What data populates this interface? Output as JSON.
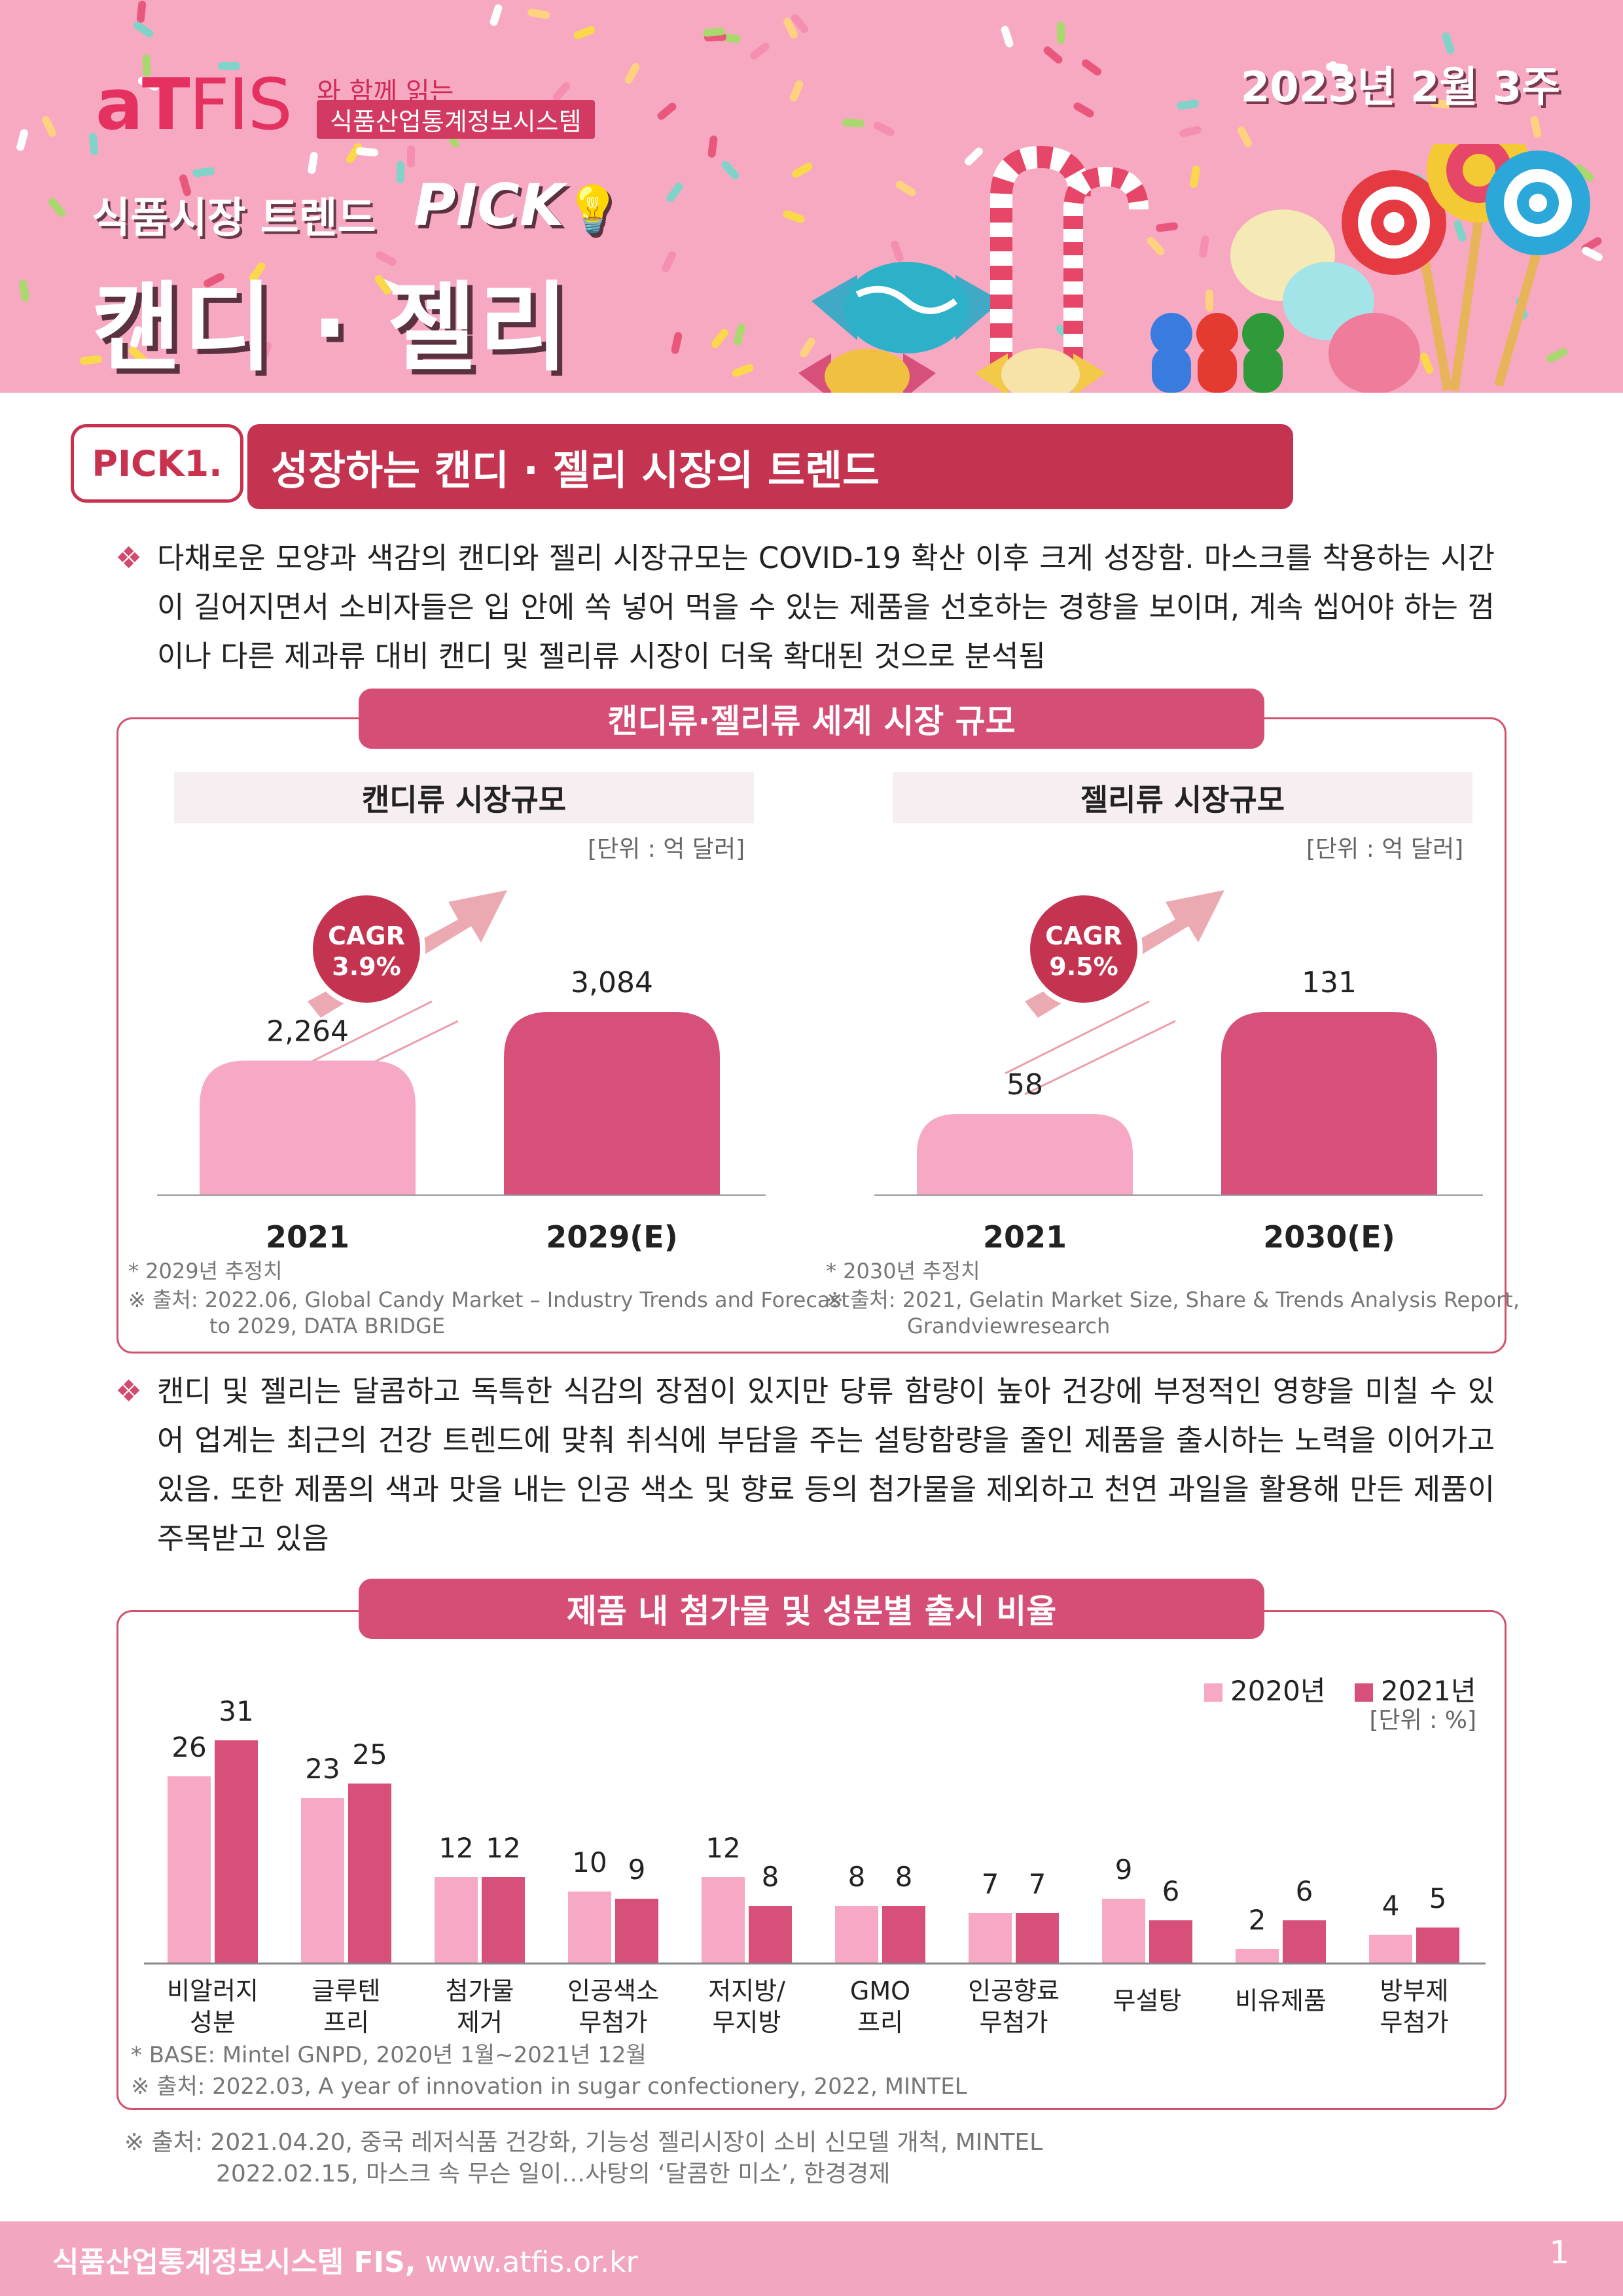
{
  "header": {
    "logo_main": "aT",
    "logo_fis": "FIS",
    "logo_sub1": "와 함께 읽는",
    "logo_sub2": "식품산업통계정보시스템",
    "week": "2023년 2월 3주",
    "trend_label": "식품시장 트렌드",
    "trend_pick": "PICK",
    "main_title": "캔디 · 젤리"
  },
  "pick": {
    "badge": "PICK1.",
    "title": "성장하는 캔디 · 젤리 시장의 트렌드"
  },
  "para1": "다채로운 모양과 색감의 캔디와 젤리 시장규모는 COVID-19 확산 이후 크게 성장함. 마스크를 착용하는 시간이 길어지면서 소비자들은 입 안에 쏙 넣어 먹을 수 있는 제품을 선호하는 경향을 보이며, 계속 씹어야 하는 껌이나 다른 제과류 대비 캔디 및 젤리류 시장이 더욱 확대된 것으로 분석됨",
  "para2": "캔디 및 젤리는 달콤하고 독특한 식감의 장점이 있지만 당류 함량이 높아 건강에 부정적인 영향을 미칠 수 있어 업계는 최근의 건강 트렌드에 맞춰 취식에 부담을 주는 설탕함량을 줄인 제품을 출시하는 노력을 이어가고 있음. 또한 제품의 색과 맛을 내는 인공 색소 및 향료 등의 첨가물을 제외하고 천연 과일을 활용해 만든 제품이 주목받고 있음",
  "bullet": "❖",
  "box1": {
    "title": "캔디류·젤리류  세계 시장 규모",
    "candy_title": "캔디류 시장규모",
    "jelly_title": "젤리류 시장규모",
    "unit": "[단위 : 억 달러]",
    "candy_note1": "* 2029년 추정치",
    "candy_note2": "※ 출처:  2022.06, Global Candy Market – Industry Trends and Forecast",
    "candy_note3": "to 2029, DATA BRIDGE",
    "jelly_note1": "* 2030년 추정치",
    "jelly_note2": "※ 출처:  2021, Gelatin Market Size, Share & Trends Analysis Report,",
    "jelly_note3": "Grandviewresearch"
  },
  "box2": {
    "title": "제품 내 첨가물 및 성분별 출시 비율",
    "unit": "[단위 : %]",
    "note1": "* BASE: Mintel GNPD, 2020년 1월~2021년 12월",
    "note2": "※ 출처: 2022.03,  A year of innovation in sugar confectionery, 2022, MINTEL"
  },
  "source1": "※ 출처:  2021.04.20, 중국 레저식품 건강화, 기능성 젤리시장이 소비 신모델 개척, MINTEL",
  "source2": "2022.02.15, 마스크 속 무슨 일이…사탕의 ‘달콤한 미소’, 한경경제",
  "footer": {
    "org": "식품산업통계정보시스템 FIS,",
    "url": " www.atfis.or.kr",
    "page": "1"
  },
  "colors": {
    "light_pink": "#f7a8c4",
    "dark_pink": "#d6507a",
    "accent": "#c4334f"
  },
  "chart_data": [
    {
      "type": "bar",
      "title": "캔디류 시장규모",
      "categories": [
        "2021",
        "2029(E)"
      ],
      "values": [
        2264,
        3084
      ],
      "value_labels": [
        "2,264",
        "3,084"
      ],
      "annotation": "CAGR\n3.9%",
      "cagr_line1": "CAGR",
      "cagr_line2": "3.9%",
      "unit": "[단위 : 억 달러]"
    },
    {
      "type": "bar",
      "title": "젤리류 시장규모",
      "categories": [
        "2021",
        "2030(E)"
      ],
      "values": [
        58,
        131
      ],
      "value_labels": [
        "58",
        "131"
      ],
      "cagr_line1": "CAGR",
      "cagr_line2": "9.5%",
      "unit": "[단위 : 억 달러]"
    },
    {
      "type": "bar",
      "title": "제품 내 첨가물 및 성분별 출시 비율",
      "categories": [
        "비알러지 성분",
        "글루텐 프리",
        "첨가물 제거",
        "인공색소 무첨가",
        "저지방/ 무지방",
        "GMO 프리",
        "인공향료 무첨가",
        "무설탕",
        "비유제품",
        "방부제 무첨가"
      ],
      "category_lines": [
        [
          "비알러지",
          "성분"
        ],
        [
          "글루텐",
          "프리"
        ],
        [
          "첨가물",
          "제거"
        ],
        [
          "인공색소",
          "무첨가"
        ],
        [
          "저지방/",
          "무지방"
        ],
        [
          "GMO",
          "프리"
        ],
        [
          "인공향료",
          "무첨가"
        ],
        [
          "무설탕",
          ""
        ],
        [
          "비유제품",
          ""
        ],
        [
          "방부제",
          "무첨가"
        ]
      ],
      "series": [
        {
          "name": "2020년",
          "values": [
            26,
            23,
            12,
            10,
            12,
            8,
            7,
            9,
            2,
            4
          ]
        },
        {
          "name": "2021년",
          "values": [
            31,
            25,
            12,
            9,
            8,
            8,
            7,
            6,
            6,
            5
          ]
        }
      ],
      "legend": "top-right",
      "unit": "[단위 : %]"
    }
  ]
}
